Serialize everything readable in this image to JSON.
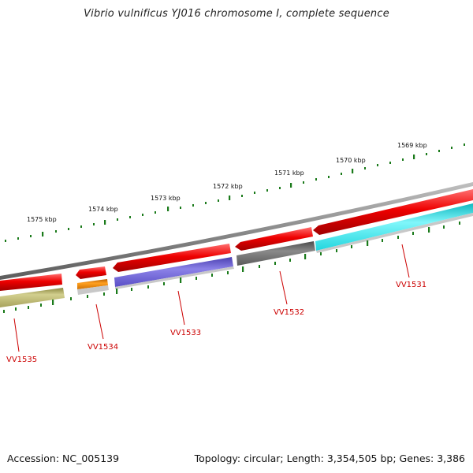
{
  "title": "Vibrio vulnificus YJ016 chromosome I, complete sequence",
  "accession": "Accession: NC_005139",
  "topology": "Topology: circular; Length: 3,354,505 bp; Genes: 3,386",
  "kbp_labels": [
    "1575 kbp",
    "1574 kbp",
    "1573 kbp",
    "1572 kbp",
    "1571 kbp",
    "1570 kbp",
    "1569 kbp"
  ],
  "gene_labels": [
    "VV1535",
    "VV1534",
    "VV1533",
    "VV1532",
    "VV1531"
  ],
  "colors": {
    "backbone": "#8a8a8a",
    "forward_gene": "#ee0000",
    "tick": "#1a7a1a",
    "label": "#cc0000",
    "olive": "#b5b16a",
    "orange": "#f08c00",
    "purple": "#6a5fd0",
    "dark_gray": "#6a6a6a",
    "cyan": "#22e6ee",
    "light_gray": "#c8c8c8"
  }
}
